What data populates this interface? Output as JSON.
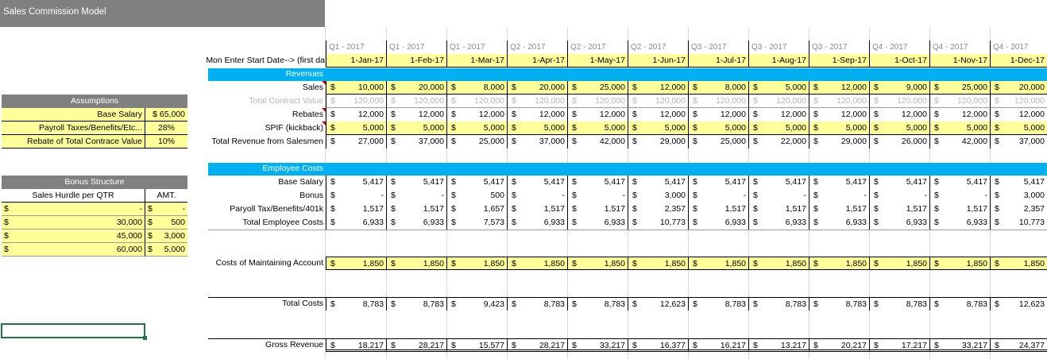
{
  "title": "Sales Commission Model",
  "quarters": [
    "Q1 - 2017",
    "Q1 - 2017",
    "Q1 - 2017",
    "Q2 - 2017",
    "Q2 - 2017",
    "Q2 - 2017",
    "Q3 - 2017",
    "Q3 - 2017",
    "Q3 - 2017",
    "Q4 - 2017",
    "Q4 - 2017",
    "Q4 - 2017"
  ],
  "months": [
    "1-Jan-17",
    "1-Feb-17",
    "1-Mar-17",
    "1-Apr-17",
    "1-May-17",
    "1-Jun-17",
    "1-Jul-17",
    "1-Aug-17",
    "1-Sep-17",
    "1-Oct-17",
    "1-Nov-17",
    "1-Dec-17"
  ],
  "month_label": "Mon Enter Start Date--> (first da",
  "revenues_header": "Revenues",
  "employee_costs_header": "Employee Costs",
  "currency": "$",
  "rows": {
    "sales": {
      "label": "Sales",
      "values": [
        "10,000",
        "20,000",
        "8,000",
        "20,000",
        "25,000",
        "12,000",
        "8,000",
        "5,000",
        "12,000",
        "9,000",
        "25,000",
        "20,000"
      ]
    },
    "tcv": {
      "label": "Total Contract Value",
      "values": [
        "120,000",
        "120,000",
        "120,000",
        "120,000",
        "120,000",
        "120,000",
        "120,000",
        "120,000",
        "120,000",
        "120,000",
        "120,000",
        "120,000"
      ]
    },
    "rebates": {
      "label": "Rebates",
      "values": [
        "12,000",
        "12,000",
        "12,000",
        "12,000",
        "12,000",
        "12,000",
        "12,000",
        "12,000",
        "12,000",
        "12,000",
        "12,000",
        "12,000"
      ]
    },
    "spif": {
      "label": "SPIF (kickback)",
      "values": [
        "5,000",
        "5,000",
        "5,000",
        "5,000",
        "5,000",
        "5,000",
        "5,000",
        "5,000",
        "5,000",
        "5,000",
        "5,000",
        "5,000"
      ]
    },
    "total_rev": {
      "label": "Total Revenue from Salesmen",
      "values": [
        "27,000",
        "37,000",
        "25,000",
        "37,000",
        "42,000",
        "29,000",
        "25,000",
        "22,000",
        "29,000",
        "26,000",
        "42,000",
        "37,000"
      ]
    },
    "base_salary": {
      "label": "Base Salary",
      "values": [
        "5,417",
        "5,417",
        "5,417",
        "5,417",
        "5,417",
        "5,417",
        "5,417",
        "5,417",
        "5,417",
        "5,417",
        "5,417",
        "5,417"
      ]
    },
    "bonus": {
      "label": "Bonus",
      "values": [
        "-",
        "-",
        "500",
        "-",
        "-",
        "3,000",
        "-",
        "-",
        "-",
        "-",
        "-",
        "3,000"
      ]
    },
    "payroll": {
      "label": "Paryoll Tax/Benefits/401k",
      "values": [
        "1,517",
        "1,517",
        "1,657",
        "1,517",
        "1,517",
        "2,357",
        "1,517",
        "1,517",
        "1,517",
        "1,517",
        "1,517",
        "2,357"
      ]
    },
    "total_emp": {
      "label": "Total Employee Costs",
      "values": [
        "6,933",
        "6,933",
        "7,573",
        "6,933",
        "6,933",
        "10,773",
        "6,933",
        "6,933",
        "6,933",
        "6,933",
        "6,933",
        "10,773"
      ]
    },
    "maint": {
      "label": "Costs of Maintaining Account",
      "values": [
        "1,850",
        "1,850",
        "1,850",
        "1,850",
        "1,850",
        "1,850",
        "1,850",
        "1,850",
        "1,850",
        "1,850",
        "1,850",
        "1,850"
      ]
    },
    "total_costs": {
      "label": "Total Costs",
      "values": [
        "8,783",
        "8,783",
        "9,423",
        "8,783",
        "8,783",
        "12,623",
        "8,783",
        "8,783",
        "8,783",
        "8,783",
        "8,783",
        "12,623"
      ]
    },
    "gross": {
      "label": "Gross Revenue",
      "values": [
        "18,217",
        "28,217",
        "15,577",
        "28,217",
        "33,217",
        "16,377",
        "16,217",
        "13,217",
        "20,217",
        "17,217",
        "33,217",
        "24,377"
      ]
    }
  },
  "assumptions": {
    "header": "Assumptions",
    "items": [
      {
        "label": "Base Salary",
        "value": "$ 65,000"
      },
      {
        "label": "Payroll Taxes/Benefits/Etc...",
        "value": "28%"
      },
      {
        "label": "Rebate of Total Contrace Value",
        "value": "10%"
      }
    ]
  },
  "bonus_structure": {
    "header": "Bonus Structure",
    "col1": "Sales Hurdle per QTR",
    "col2": "AMT.",
    "rows": [
      {
        "hurdle": "-",
        "amt": "-"
      },
      {
        "hurdle": "30,000",
        "amt": "500"
      },
      {
        "hurdle": "45,000",
        "amt": "3,000"
      },
      {
        "hurdle": "60,000",
        "amt": "5,000"
      }
    ]
  }
}
